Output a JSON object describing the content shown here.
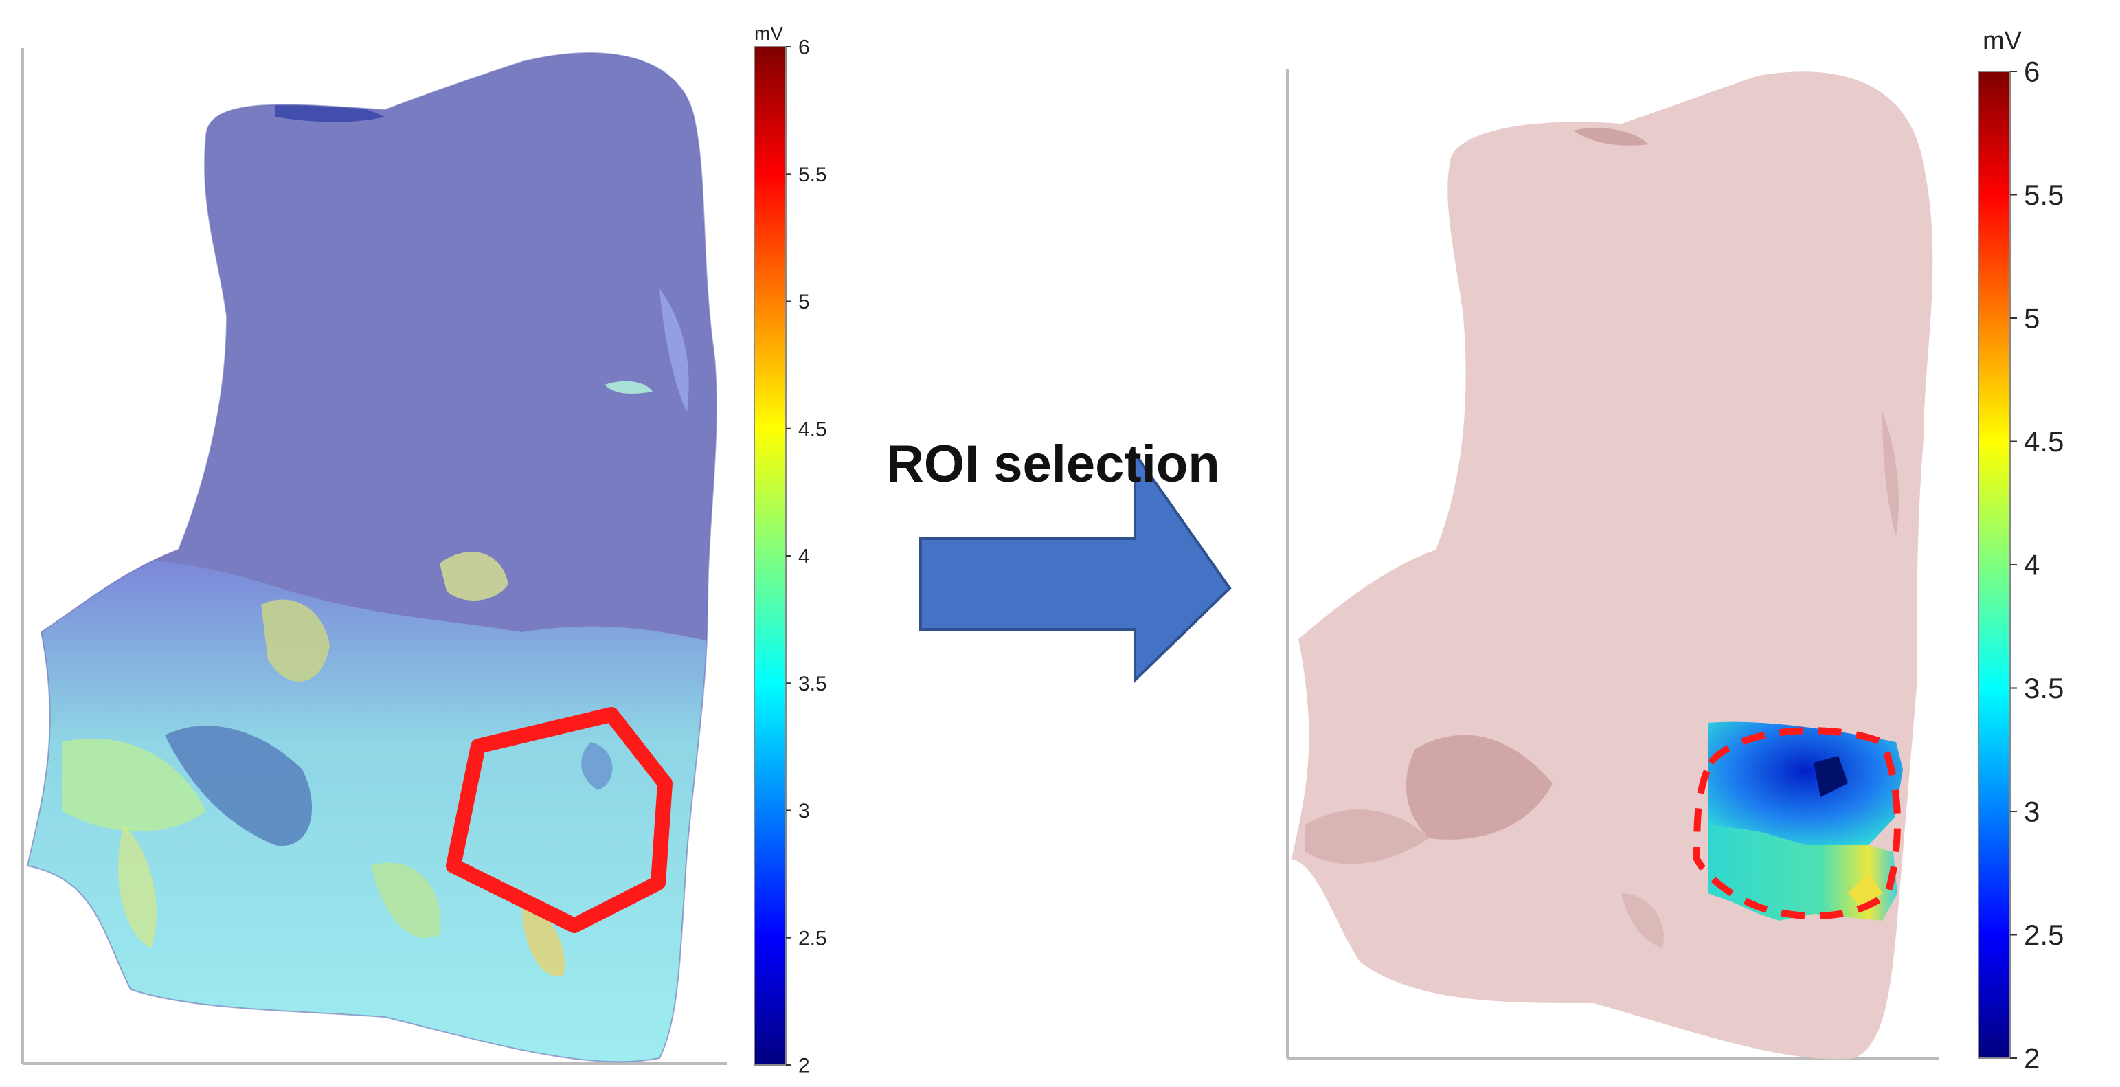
{
  "caption": {
    "text": "ROI selection"
  },
  "colors": {
    "arrow": "#4472c4",
    "arrow_edge": "#2f528f",
    "roi_outline": "#ff1a1a",
    "axis": "#bbbbbb",
    "surface_low": "#7a7cc2",
    "surface_masked": "#e8cccc"
  },
  "panels": [
    {
      "id": "before",
      "colorbar": {
        "unit": "mV",
        "ticks": [
          "2",
          "2.5",
          "3",
          "3.5",
          "4",
          "4.5",
          "5",
          "5.5",
          "6"
        ],
        "min": 2,
        "max": 6,
        "colormap": "jet"
      },
      "roi_shape": "hexagon",
      "roi_style": "solid"
    },
    {
      "id": "after",
      "colorbar": {
        "unit": "mV",
        "ticks": [
          "2",
          "2.5",
          "3",
          "3.5",
          "4",
          "4.5",
          "5",
          "5.5",
          "6"
        ],
        "min": 2,
        "max": 6,
        "colormap": "jet"
      },
      "roi_shape": "rounded-square",
      "roi_style": "dashed"
    }
  ],
  "icons": {
    "arrow": "right-arrow-icon"
  }
}
